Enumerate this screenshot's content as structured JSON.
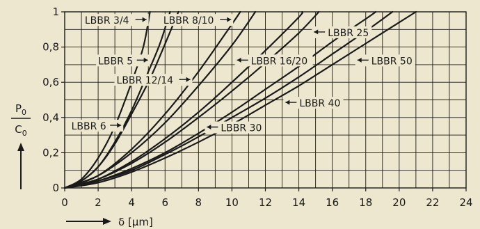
{
  "chart_data": {
    "type": "line",
    "xlabel": "δ [µm]",
    "ylabel_numerator": "P0",
    "ylabel_denominator": "C0",
    "xlim": [
      0,
      24
    ],
    "ylim": [
      0,
      1
    ],
    "x_ticks": [
      0,
      2,
      4,
      6,
      8,
      10,
      12,
      14,
      16,
      18,
      20,
      22,
      24
    ],
    "y_ticks": [
      0,
      0.2,
      0.4,
      0.6,
      0.8,
      1
    ],
    "x_tick_labels": [
      "0",
      "2",
      "4",
      "6",
      "8",
      "10",
      "12",
      "14",
      "16",
      "18",
      "20",
      "22",
      "24"
    ],
    "y_tick_labels": [
      "0",
      "0,2",
      "0,4",
      "0,6",
      "0,8",
      "1"
    ],
    "grid": true,
    "series": [
      {
        "name": "LBBR 3/4",
        "points": [
          [
            0,
            0
          ],
          [
            1,
            0.05
          ],
          [
            2,
            0.17
          ],
          [
            3,
            0.35
          ],
          [
            4,
            0.6
          ],
          [
            4.7,
            0.8
          ],
          [
            5.1,
            1
          ]
        ]
      },
      {
        "name": "LBBR 5",
        "points": [
          [
            0,
            0
          ],
          [
            1,
            0.04
          ],
          [
            2,
            0.12
          ],
          [
            3,
            0.25
          ],
          [
            4,
            0.42
          ],
          [
            5,
            0.6
          ],
          [
            5.7,
            0.75
          ],
          [
            6.8,
            1
          ]
        ]
      },
      {
        "name": "LBBR 6",
        "points": [
          [
            0,
            0
          ],
          [
            1,
            0.04
          ],
          [
            2,
            0.12
          ],
          [
            3,
            0.26
          ],
          [
            4,
            0.44
          ],
          [
            5,
            0.66
          ],
          [
            5.7,
            0.82
          ],
          [
            6.3,
            1
          ]
        ]
      },
      {
        "name": "LBBR 8/10",
        "points": [
          [
            0,
            0
          ],
          [
            2,
            0.07
          ],
          [
            4,
            0.22
          ],
          [
            6,
            0.42
          ],
          [
            8,
            0.66
          ],
          [
            10,
            0.93
          ],
          [
            10.5,
            1
          ]
        ]
      },
      {
        "name": "LBBR 12/14",
        "points": [
          [
            0,
            0
          ],
          [
            2,
            0.07
          ],
          [
            4,
            0.2
          ],
          [
            6,
            0.37
          ],
          [
            8,
            0.58
          ],
          [
            10,
            0.81
          ],
          [
            11.4,
            1
          ]
        ]
      },
      {
        "name": "LBBR 16/20",
        "points": [
          [
            0,
            0
          ],
          [
            2,
            0.05
          ],
          [
            4,
            0.15
          ],
          [
            6,
            0.28
          ],
          [
            8,
            0.43
          ],
          [
            10,
            0.6
          ],
          [
            12,
            0.78
          ],
          [
            14,
            0.97
          ],
          [
            14.2,
            1
          ]
        ]
      },
      {
        "name": "LBBR 25",
        "points": [
          [
            0,
            0
          ],
          [
            2,
            0.05
          ],
          [
            4,
            0.14
          ],
          [
            6,
            0.26
          ],
          [
            8,
            0.4
          ],
          [
            10,
            0.55
          ],
          [
            12,
            0.71
          ],
          [
            14,
            0.88
          ],
          [
            15.2,
            1
          ]
        ]
      },
      {
        "name": "LBBR 30",
        "points": [
          [
            0,
            0
          ],
          [
            2,
            0.04
          ],
          [
            4,
            0.11
          ],
          [
            6,
            0.2
          ],
          [
            8,
            0.31
          ],
          [
            10,
            0.43
          ],
          [
            12,
            0.56
          ],
          [
            14,
            0.69
          ],
          [
            16,
            0.83
          ],
          [
            18,
            0.96
          ],
          [
            18.6,
            1
          ]
        ]
      },
      {
        "name": "LBBR 40",
        "points": [
          [
            0,
            0
          ],
          [
            2,
            0.04
          ],
          [
            4,
            0.1
          ],
          [
            6,
            0.19
          ],
          [
            8,
            0.29
          ],
          [
            10,
            0.4
          ],
          [
            12,
            0.51
          ],
          [
            14,
            0.63
          ],
          [
            16,
            0.76
          ],
          [
            18,
            0.89
          ],
          [
            19.6,
            1
          ]
        ]
      },
      {
        "name": "LBBR 50",
        "points": [
          [
            0,
            0
          ],
          [
            2,
            0.03
          ],
          [
            4,
            0.09
          ],
          [
            6,
            0.17
          ],
          [
            8,
            0.26
          ],
          [
            10,
            0.36
          ],
          [
            12,
            0.47
          ],
          [
            14,
            0.58
          ],
          [
            16,
            0.7
          ],
          [
            18,
            0.82
          ],
          [
            20,
            0.94
          ],
          [
            21,
            1
          ]
        ]
      }
    ],
    "labels": [
      {
        "text": "LBBR 3/4",
        "x": 1.2,
        "y": 0.94,
        "arrow": "right"
      },
      {
        "text": "LBBR 5",
        "x": 2.0,
        "y": 0.71,
        "arrow": "right"
      },
      {
        "text": "LBBR 12/14",
        "x": 3.1,
        "y": 0.6,
        "arrow": "right"
      },
      {
        "text": "LBBR 6",
        "x": 0.4,
        "y": 0.34,
        "arrow": "right"
      },
      {
        "text": "LBBR 8/10",
        "x": 5.9,
        "y": 0.94,
        "arrow": "right"
      },
      {
        "text": "LBBR 16/20",
        "x": 10.3,
        "y": 0.71,
        "arrow": "left"
      },
      {
        "text": "LBBR 25",
        "x": 14.9,
        "y": 0.87,
        "arrow": "left"
      },
      {
        "text": "LBBR 50",
        "x": 17.5,
        "y": 0.71,
        "arrow": "left"
      },
      {
        "text": "LBBR 40",
        "x": 13.2,
        "y": 0.47,
        "arrow": "left"
      },
      {
        "text": "LBBR 30",
        "x": 8.5,
        "y": 0.33,
        "arrow": "left"
      }
    ],
    "colors": {
      "background": "#ede7cf",
      "line": "#1a1a1a",
      "grid": "#1a1a1a"
    }
  }
}
